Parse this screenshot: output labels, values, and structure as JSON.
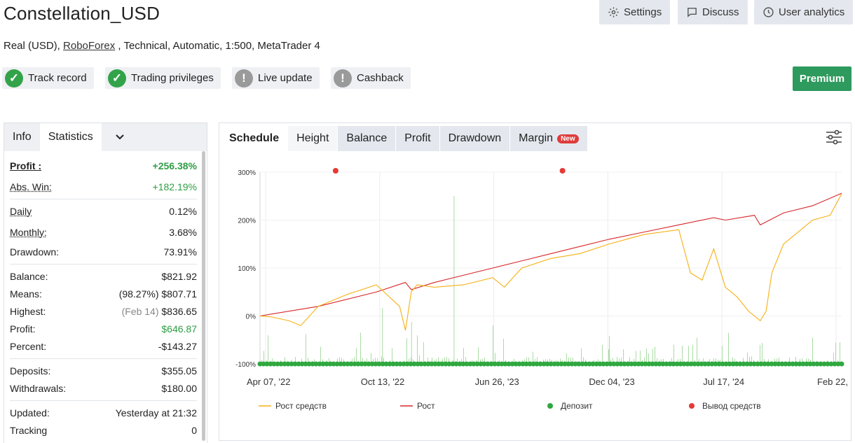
{
  "header": {
    "title": "Constellation_USD",
    "subtitle_pre": "Real (USD), ",
    "broker": "RoboForex",
    "subtitle_post": " , Technical, Automatic, 1:500, MetaTrader 4",
    "settings_label": "Settings",
    "discuss_label": "Discuss",
    "analytics_label": "User analytics",
    "premium_label": "Premium"
  },
  "badges": [
    {
      "label": "Track record",
      "status": "ok"
    },
    {
      "label": "Trading privileges",
      "status": "ok"
    },
    {
      "label": "Live update",
      "status": "warn"
    },
    {
      "label": "Cashback",
      "status": "warn"
    }
  ],
  "left_tabs": {
    "info": "Info",
    "statistics": "Statistics"
  },
  "stats": {
    "profit_label": "Profit :",
    "profit_value": "+256.38%",
    "abs_label": "Abs. Win:",
    "abs_value": "+182.19%",
    "daily_label": "Daily",
    "daily_value": "0.12%",
    "monthly_label": "Monthly:",
    "monthly_value": "3.68%",
    "drawdown_label": "Drawdown:",
    "drawdown_value": "73.91%",
    "balance_label": "Balance:",
    "balance_value": "$821.92",
    "means_label": "Means:",
    "means_pct": "(98.27%)",
    "means_value": "$807.71",
    "highest_label": "Highest:",
    "highest_date": "(Feb 14)",
    "highest_value": "$836.65",
    "profit2_label": "Profit:",
    "profit2_value": "$646.87",
    "percent_label": "Percent:",
    "percent_value": "-$143.27",
    "deposits_label": "Deposits:",
    "deposits_value": "$355.05",
    "withdrawals_label": "Withdrawals:",
    "withdrawals_value": "$180.00",
    "updated_label": "Updated:",
    "updated_value": "Yesterday at 21:32",
    "tracking_label": "Tracking",
    "tracking_value": "0"
  },
  "chart_tabs": {
    "schedule": "Schedule",
    "height": "Height",
    "balance": "Balance",
    "profit": "Profit",
    "drawdown": "Drawdown",
    "margin": "Margin",
    "new_badge": "New"
  },
  "colors": {
    "equity": "#f5b014",
    "growth": "#d7262b",
    "deposit": "#2fa83f",
    "withdrawal": "#e53935",
    "premium": "#2e9a5d"
  },
  "chart_data": {
    "type": "line",
    "x_ticks": [
      "Apr 07, '22",
      "Oct 13, '22",
      "Jun 26, '23",
      "Dec 04, '23",
      "Jul 17, '24",
      "Feb 22, '25"
    ],
    "y_ticks": [
      "300%",
      "200%",
      "100%",
      "0%",
      "-100%"
    ],
    "ylim": [
      -100,
      300
    ],
    "grid": true,
    "legend_position": "bottom",
    "series": [
      {
        "name": "Рост средств",
        "color": "#f5b014",
        "x": [
          0,
          0.02,
          0.05,
          0.07,
          0.1,
          0.15,
          0.2,
          0.24,
          0.25,
          0.26,
          0.27,
          0.3,
          0.35,
          0.4,
          0.42,
          0.45,
          0.5,
          0.55,
          0.6,
          0.66,
          0.72,
          0.74,
          0.76,
          0.78,
          0.8,
          0.82,
          0.84,
          0.86,
          0.87,
          0.88,
          0.9,
          0.92,
          0.95,
          0.98,
          1.0
        ],
        "y": [
          0,
          -2,
          -10,
          -20,
          20,
          45,
          65,
          20,
          -30,
          50,
          65,
          60,
          65,
          80,
          60,
          100,
          120,
          130,
          150,
          170,
          180,
          90,
          75,
          140,
          60,
          40,
          10,
          -10,
          10,
          90,
          150,
          170,
          200,
          210,
          255
        ]
      },
      {
        "name": "Рост",
        "color": "#d7262b",
        "x": [
          0,
          0.1,
          0.2,
          0.25,
          0.26,
          0.3,
          0.35,
          0.4,
          0.45,
          0.5,
          0.55,
          0.6,
          0.66,
          0.72,
          0.78,
          0.8,
          0.85,
          0.86,
          0.9,
          0.95,
          1.0
        ],
        "y": [
          0,
          20,
          50,
          70,
          55,
          70,
          85,
          100,
          115,
          130,
          145,
          160,
          175,
          190,
          205,
          200,
          210,
          190,
          215,
          230,
          256
        ]
      },
      {
        "name": "Депозит",
        "color": "#2fa83f",
        "y": -100
      },
      {
        "name": "Вывод средств",
        "color": "#e53935",
        "x": [
          0.13,
          0.52
        ],
        "y": 300
      }
    ]
  }
}
